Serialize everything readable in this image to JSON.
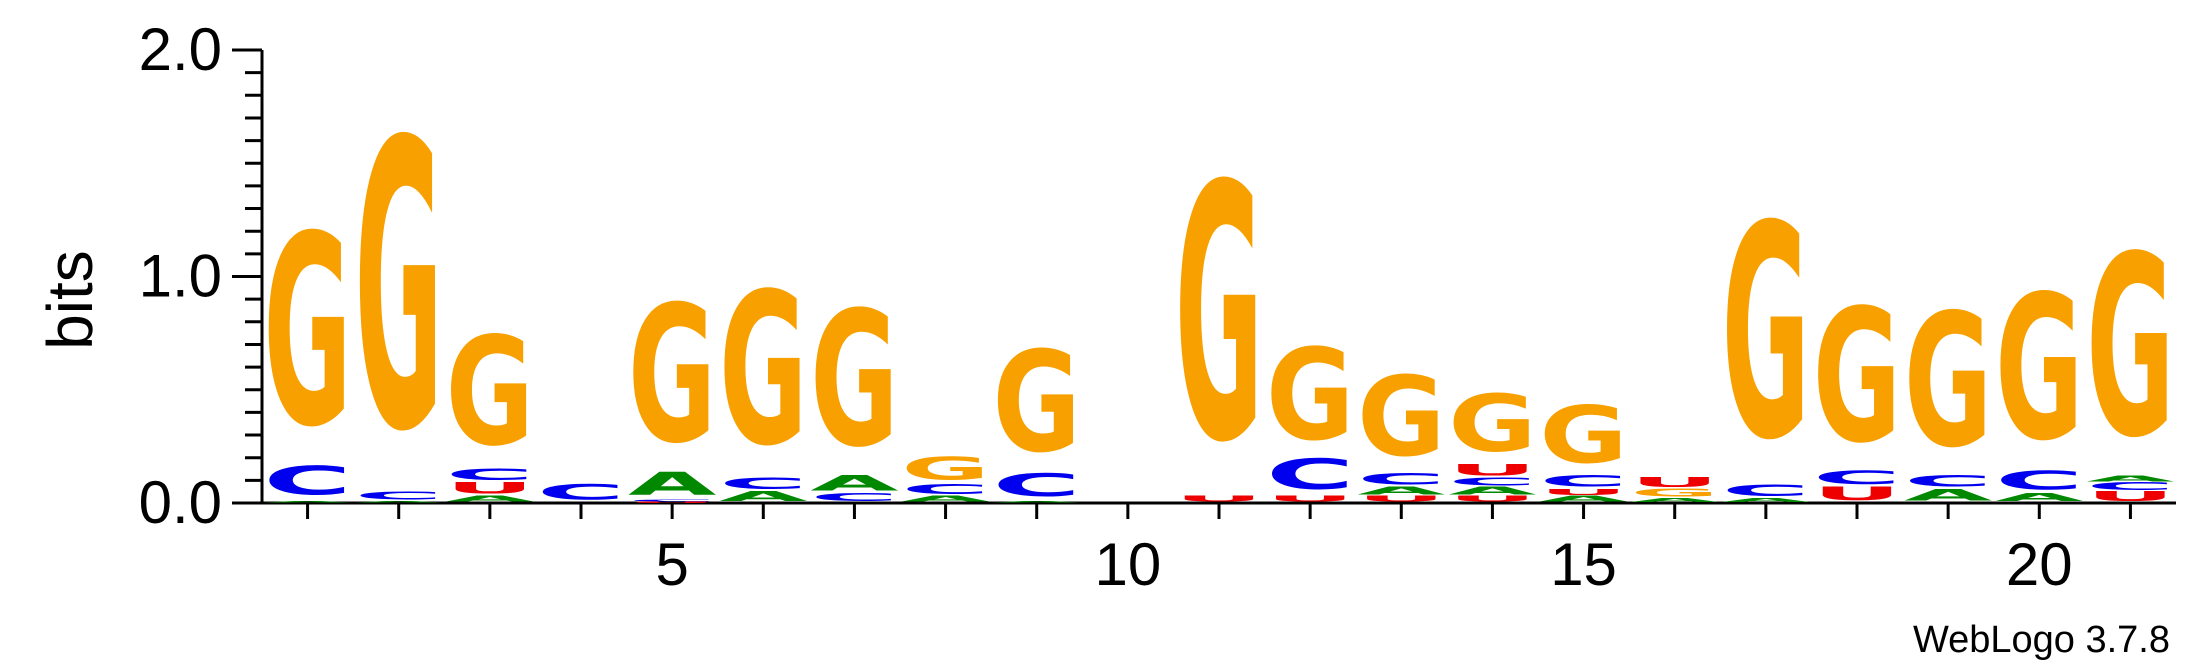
{
  "chart_data": {
    "type": "sequence-logo",
    "ylabel": "bits",
    "ylim": [
      0,
      2.0
    ],
    "y_tick_labels": [
      "0.0",
      "1.0",
      "2.0"
    ],
    "x_tick_labels": [
      "5",
      "10",
      "15",
      "20"
    ],
    "x_tick_values": [
      5,
      10,
      15,
      20
    ],
    "x_range": [
      0.5,
      21.5
    ],
    "footer": "WebLogo 3.7.8",
    "colors": {
      "G": "#f7a000",
      "C": "#0000ee",
      "A": "#008800",
      "U": "#ee0000"
    },
    "positions": [
      {
        "pos": 1,
        "stack": [
          [
            "A",
            0.008
          ],
          [
            "C",
            0.15
          ],
          [
            "G",
            1.0
          ]
        ]
      },
      {
        "pos": 2,
        "stack": [
          [
            "A",
            0.008
          ],
          [
            "C",
            0.04
          ],
          [
            "G",
            1.51
          ]
        ]
      },
      {
        "pos": 3,
        "stack": [
          [
            "A",
            0.03
          ],
          [
            "U",
            0.06
          ],
          [
            "C",
            0.06
          ],
          [
            "G",
            0.57
          ]
        ]
      },
      {
        "pos": 4,
        "stack": [
          [
            "C",
            0.08
          ]
        ]
      },
      {
        "pos": 5,
        "stack": [
          [
            "U",
            0.005
          ],
          [
            "C",
            0.01
          ],
          [
            "A",
            0.12
          ],
          [
            "G",
            0.72
          ]
        ]
      },
      {
        "pos": 6,
        "stack": [
          [
            "A",
            0.05
          ],
          [
            "C",
            0.06
          ],
          [
            "G",
            0.8
          ]
        ]
      },
      {
        "pos": 7,
        "stack": [
          [
            "C",
            0.04
          ],
          [
            "A",
            0.08
          ],
          [
            "G",
            0.71
          ]
        ]
      },
      {
        "pos": 8,
        "stack": [
          [
            "A",
            0.03
          ],
          [
            "C",
            0.05
          ],
          [
            "G",
            0.12
          ]
        ]
      },
      {
        "pos": 9,
        "stack": [
          [
            "A",
            0.008
          ],
          [
            "C",
            0.12
          ],
          [
            "G",
            0.53
          ]
        ]
      },
      {
        "pos": 10,
        "stack": []
      },
      {
        "pos": 11,
        "stack": [
          [
            "U",
            0.03
          ],
          [
            "G",
            1.34
          ]
        ]
      },
      {
        "pos": 12,
        "stack": [
          [
            "U",
            0.03
          ],
          [
            "C",
            0.16
          ],
          [
            "G",
            0.48
          ]
        ]
      },
      {
        "pos": 13,
        "stack": [
          [
            "U",
            0.03
          ],
          [
            "A",
            0.04
          ],
          [
            "C",
            0.06
          ],
          [
            "G",
            0.42
          ]
        ]
      },
      {
        "pos": 14,
        "stack": [
          [
            "U",
            0.03
          ],
          [
            "A",
            0.04
          ],
          [
            "C",
            0.04
          ],
          [
            "U",
            0.06
          ],
          [
            "G",
            0.3
          ]
        ]
      },
      {
        "pos": 15,
        "stack": [
          [
            "A",
            0.03
          ],
          [
            "U",
            0.03
          ],
          [
            "C",
            0.06
          ],
          [
            "G",
            0.3
          ]
        ]
      },
      {
        "pos": 16,
        "stack": [
          [
            "A",
            0.02
          ],
          [
            "G",
            0.04
          ],
          [
            "U",
            0.05
          ]
        ]
      },
      {
        "pos": 17,
        "stack": [
          [
            "A",
            0.02
          ],
          [
            "C",
            0.06
          ],
          [
            "G",
            1.12
          ]
        ]
      },
      {
        "pos": 18,
        "stack": [
          [
            "U",
            0.07
          ],
          [
            "C",
            0.07
          ],
          [
            "G",
            0.7
          ]
        ]
      },
      {
        "pos": 19,
        "stack": [
          [
            "A",
            0.06
          ],
          [
            "C",
            0.06
          ],
          [
            "G",
            0.7
          ]
        ]
      },
      {
        "pos": 20,
        "stack": [
          [
            "A",
            0.04
          ],
          [
            "C",
            0.1
          ],
          [
            "G",
            0.76
          ]
        ]
      },
      {
        "pos": 21,
        "stack": [
          [
            "U",
            0.05
          ],
          [
            "C",
            0.04
          ],
          [
            "A",
            0.03
          ],
          [
            "G",
            0.95
          ]
        ]
      }
    ]
  }
}
